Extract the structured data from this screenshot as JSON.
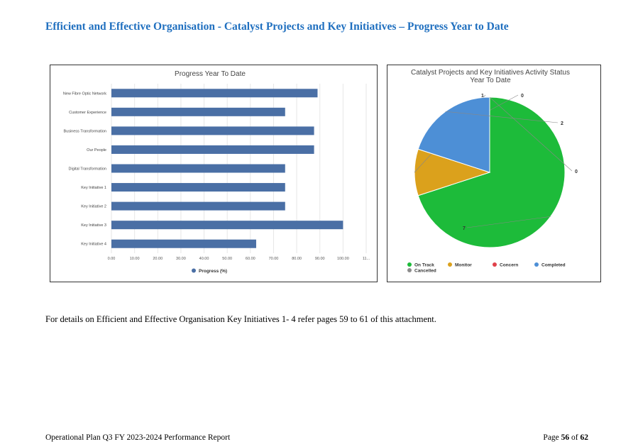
{
  "document": {
    "heading": "Efficient and Effective Organisation - Catalyst Projects and Key Initiatives – Progress Year to Date",
    "body_text": "For details on Efficient and Effective Organisation Key Initiatives 1- 4 refer pages 59 to 61 of this attachment.",
    "footer_left": "Operational Plan Q3 FY 2023-2024 Performance Report",
    "footer_page_prefix": "Page",
    "footer_page_number": "56",
    "footer_page_of": "of",
    "footer_page_total": "62"
  },
  "chart_data": [
    {
      "type": "bar",
      "orientation": "horizontal",
      "title": "Progress Year To Date",
      "categories": [
        "New Fibre Optic Network",
        "Customer Experience",
        "Business Transformation",
        "Our People",
        "Digital Transformation",
        "Key Initiative 1",
        "Key Initiative 2",
        "Key Initiative 3",
        "Key Initiative 4"
      ],
      "series": [
        {
          "name": "Progress (%)",
          "color": "#4a6fa5",
          "values": [
            89,
            75,
            87.5,
            87.5,
            75,
            75,
            75,
            100,
            62.5
          ]
        }
      ],
      "xlim": [
        0,
        110
      ],
      "x_tick_labels": [
        "0.00",
        "10.00",
        "20.00",
        "30.00",
        "40.00",
        "50.00",
        "60.00",
        "70.00",
        "80.00",
        "90.00",
        "100.00",
        "11..."
      ],
      "grid": true,
      "legend": "bottom"
    },
    {
      "type": "pie",
      "title_lines": [
        "Catalyst Projects and Key Initiatives Activity Status",
        "Year To Date"
      ],
      "slices": [
        {
          "label": "On Track",
          "value": 7,
          "color": "#1dbb3a"
        },
        {
          "label": "Monitor",
          "value": 1,
          "color": "#dba11c"
        },
        {
          "label": "Concern",
          "value": 0,
          "color": "#e0414a"
        },
        {
          "label": "Completed",
          "value": 2,
          "color": "#4d8fd6"
        },
        {
          "label": "Cancelled",
          "value": 0,
          "color": "#8c8c8c"
        }
      ],
      "legend": "bottom"
    }
  ]
}
